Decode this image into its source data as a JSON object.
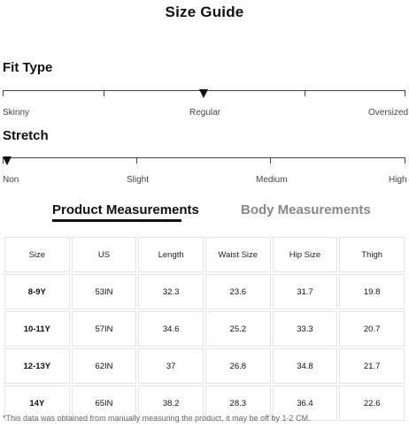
{
  "title": "Size Guide",
  "fit_type": {
    "heading": "Fit Type",
    "labels": [
      "Skinny",
      "Regular",
      "Oversized"
    ],
    "selected": "Regular"
  },
  "stretch": {
    "heading": "Stretch",
    "labels": [
      "Non",
      "Slight",
      "Medium",
      "High"
    ],
    "selected": "Non"
  },
  "tabs": {
    "product": "Product Measurements",
    "body": "Body Measurements",
    "active": "Product Measurements"
  },
  "table": {
    "headers": [
      "Size",
      "US",
      "Length",
      "Waist Size",
      "Hip Size",
      "Thigh"
    ],
    "rows": [
      [
        "8-9Y",
        "53IN",
        "32.3",
        "23.6",
        "31.7",
        "19.8"
      ],
      [
        "10-11Y",
        "57IN",
        "34.6",
        "25.2",
        "33.3",
        "20.7"
      ],
      [
        "12-13Y",
        "62IN",
        "37",
        "26.8",
        "34.8",
        "21.7"
      ],
      [
        "14Y",
        "65IN",
        "38.2",
        "28.3",
        "36.4",
        "22.6"
      ]
    ]
  },
  "footnote": "*This data was obtained from manually measuring the product, it may be off by 1-2 CM."
}
